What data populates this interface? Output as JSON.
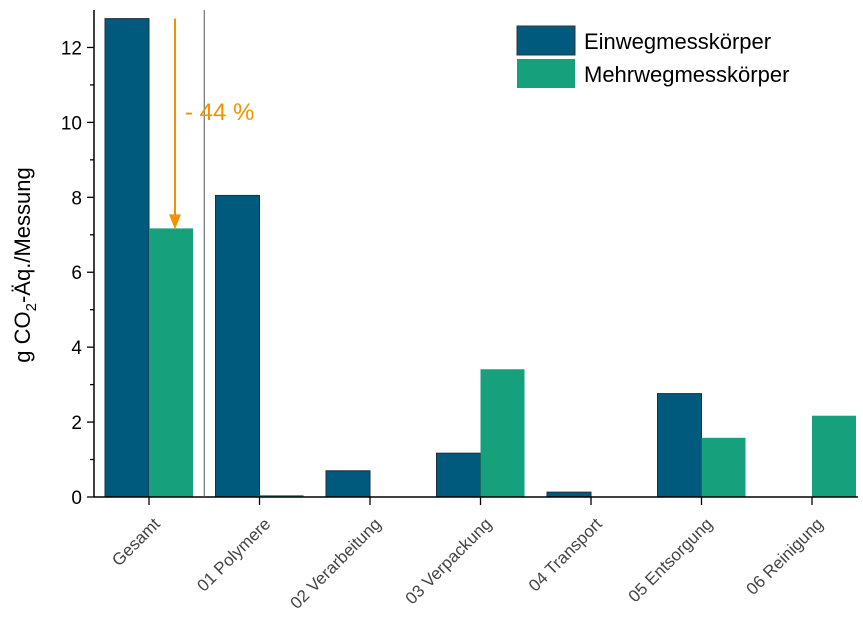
{
  "chart_data": {
    "type": "bar",
    "categories": [
      "Gesamt",
      "01 Polymere",
      "02 Verarbeitung",
      "03 Verpackung",
      "04 Transport",
      "05 Entsorgung",
      "06 Reinigung"
    ],
    "series": [
      {
        "name": "Einwegmesskörper",
        "color": "#005a7d",
        "values": [
          12.77,
          8.05,
          0.7,
          1.17,
          0.13,
          2.76,
          0
        ]
      },
      {
        "name": "Mehrwegmesskörper",
        "color": "#17a07c",
        "values": [
          7.17,
          0.05,
          0,
          3.41,
          0,
          1.58,
          2.17
        ]
      }
    ],
    "ylabel_main": "g CO",
    "ylabel_sub": "2",
    "ylabel_rest": "-Äq./Messung",
    "ylim": [
      0,
      13
    ],
    "yticks": [
      "0",
      "2",
      "4",
      "6",
      "8",
      "10",
      "12"
    ],
    "legend_position": "top-right",
    "annotation": {
      "text": "- 44 %",
      "color": "#f39200",
      "from_value": 12.77,
      "to_value": 7.17
    }
  }
}
